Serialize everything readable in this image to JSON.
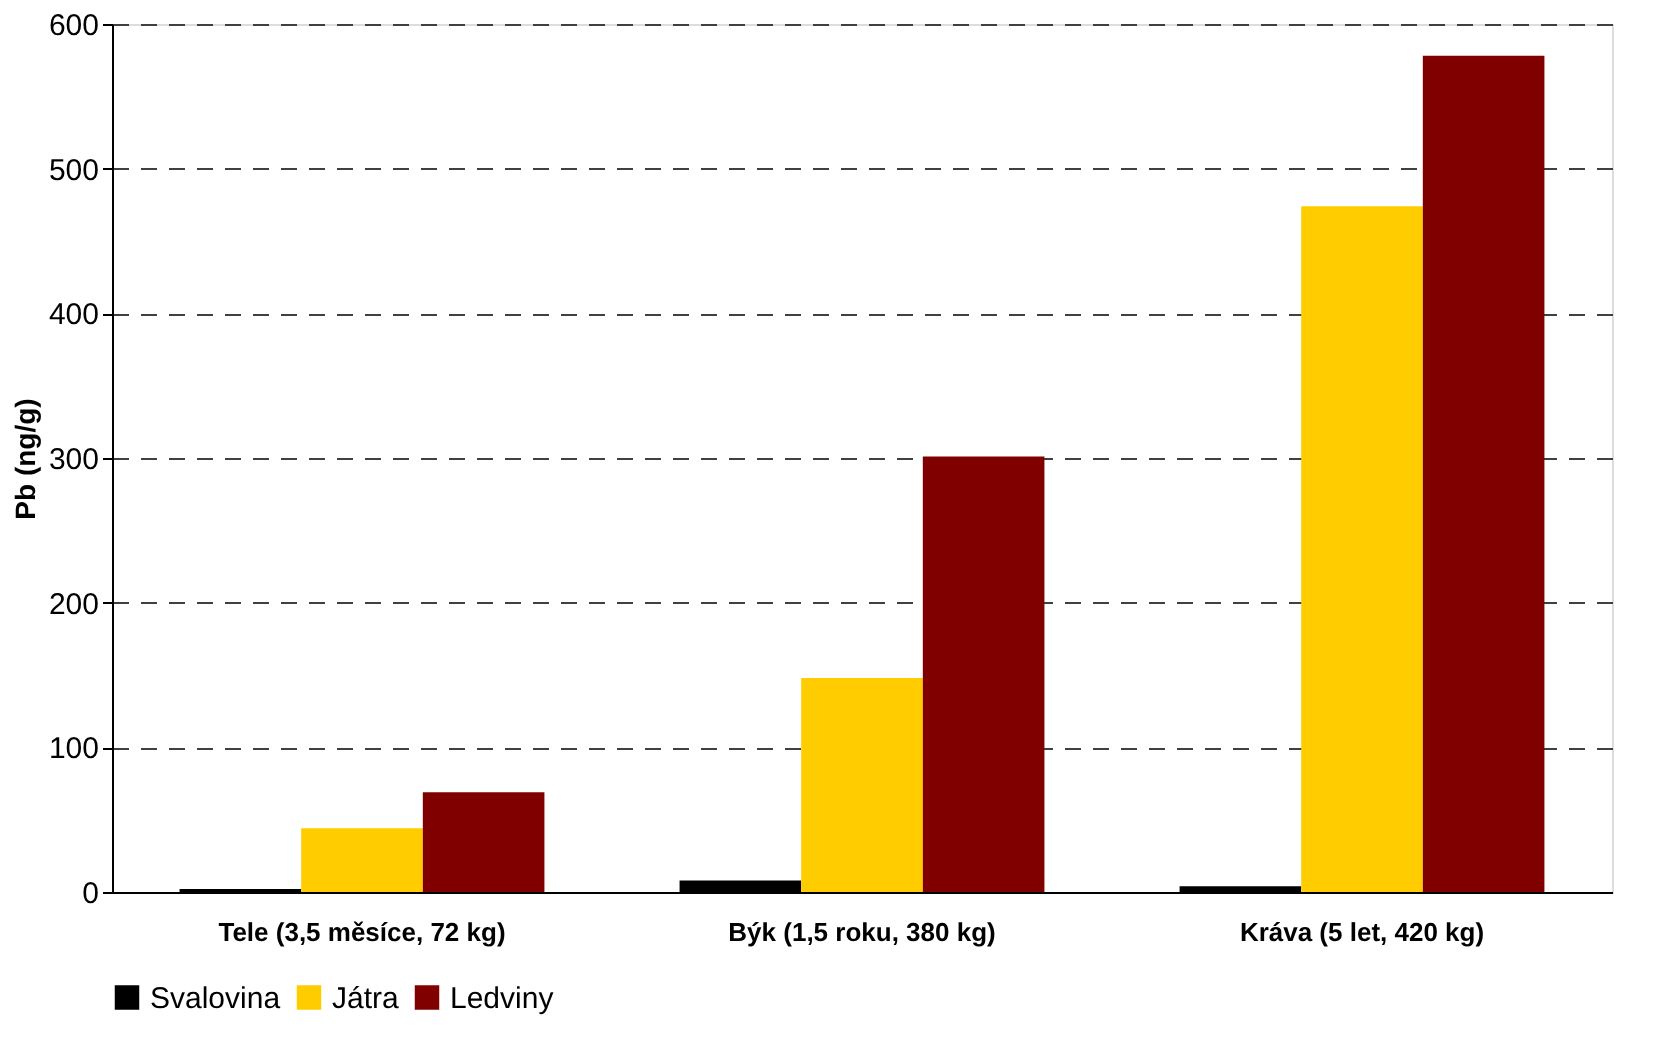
{
  "chart_data": {
    "type": "bar",
    "ylabel": "Pb (ng/g)",
    "categories": [
      "Tele (3,5 měsíce, 72 kg)",
      "Býk (1,5 roku, 380 kg)",
      "Kráva (5 let, 420 kg)"
    ],
    "series": [
      {
        "name": "Svalovina",
        "color": "#000000",
        "values": [
          2,
          8,
          4
        ]
      },
      {
        "name": "Játra",
        "color": "#ffcc00",
        "values": [
          44,
          148,
          474
        ]
      },
      {
        "name": "Ledviny",
        "color": "#800000",
        "values": [
          69,
          301,
          578
        ]
      }
    ],
    "ylim": [
      0,
      600
    ],
    "yticks": [
      0,
      100,
      200,
      300,
      400,
      500,
      600
    ],
    "grid": "y",
    "legend": "bottom"
  }
}
